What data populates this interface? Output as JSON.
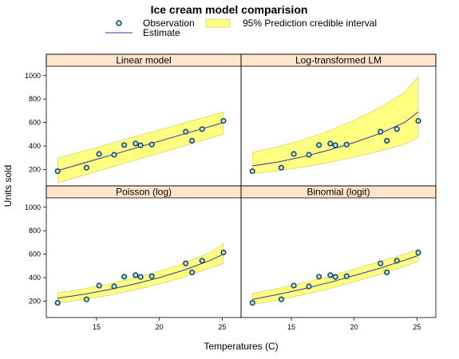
{
  "chart_data": {
    "type": "line",
    "title": "Ice cream model comparision",
    "xlabel": "Temperatures (C)",
    "ylabel": "Units sold",
    "xlim": [
      11,
      26.5
    ],
    "ylim": [
      60,
      1080
    ],
    "xticks": [
      15,
      20,
      25
    ],
    "yticks": [
      200,
      400,
      600,
      800,
      1000
    ],
    "legend": {
      "placement": "top",
      "observation_label": "Observation",
      "estimate_label": "Estimate",
      "interval_label": "95% Prediction credible interval"
    },
    "colors": {
      "point_edge": "#1a4a5c",
      "point_fill": "#b8e4f0",
      "estimate_line": "#3333aa",
      "interval_fill": "#ffff80",
      "interval_edge": "#c8c860",
      "strip_bg": "#ffe5cc"
    },
    "observations": {
      "x": [
        11.9,
        14.2,
        15.2,
        16.4,
        17.2,
        18.1,
        18.5,
        19.4,
        22.1,
        22.6,
        23.4,
        25.1
      ],
      "y": [
        185,
        215,
        332,
        325,
        408,
        421,
        406,
        412,
        522,
        445,
        544,
        614
      ]
    },
    "panels": [
      {
        "name": "Linear model",
        "x": [
          11.9,
          25.1
        ],
        "estimate": [
          190,
          600
        ],
        "lower": [
          85,
          500
        ],
        "upper": [
          295,
          690
        ]
      },
      {
        "name": "Log-transformed LM",
        "x": [
          11.9,
          14,
          16,
          18,
          20,
          22,
          24,
          25.1
        ],
        "estimate": [
          230,
          265,
          310,
          365,
          430,
          505,
          600,
          690
        ],
        "lower": [
          165,
          190,
          220,
          260,
          305,
          355,
          415,
          470
        ],
        "upper": [
          345,
          395,
          455,
          530,
          620,
          725,
          855,
          990
        ]
      },
      {
        "name": "Poisson (log)",
        "x": [
          11.9,
          14,
          16,
          18,
          20,
          22,
          24,
          25.1
        ],
        "estimate": [
          225,
          258,
          298,
          345,
          400,
          465,
          545,
          600
        ],
        "lower": [
          185,
          212,
          250,
          295,
          345,
          405,
          480,
          520
        ],
        "upper": [
          270,
          305,
          345,
          395,
          455,
          525,
          610,
          690
        ]
      },
      {
        "name": "Binomial (logit)",
        "x": [
          11.9,
          14,
          16,
          18,
          20,
          22,
          24,
          25.1
        ],
        "estimate": [
          215,
          258,
          305,
          358,
          418,
          478,
          548,
          590
        ],
        "lower": [
          170,
          210,
          255,
          305,
          365,
          425,
          495,
          540
        ],
        "upper": [
          265,
          308,
          358,
          410,
          472,
          535,
          600,
          640
        ]
      }
    ]
  }
}
